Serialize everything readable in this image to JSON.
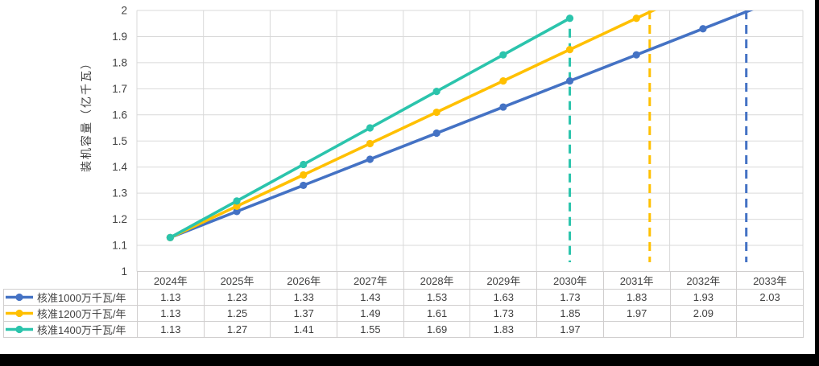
{
  "chart_data": {
    "type": "line",
    "title": "",
    "ylabel": "装机容量（亿千瓦）",
    "xlabel": "",
    "ylim": [
      1,
      2
    ],
    "ytick_step": 0.1,
    "ytick_labels": [
      "1",
      "1.1",
      "1.2",
      "1.3",
      "1.4",
      "1.5",
      "1.6",
      "1.7",
      "1.8",
      "1.9",
      "2"
    ],
    "grid": true,
    "legend_position": "table-left",
    "categories": [
      "2024年",
      "2025年",
      "2026年",
      "2027年",
      "2028年",
      "2029年",
      "2030年",
      "2031年",
      "2032年",
      "2033年"
    ],
    "series": [
      {
        "name": "核准1000万千瓦/年",
        "color": "#4472C4",
        "values": [
          1.13,
          1.23,
          1.33,
          1.43,
          1.53,
          1.63,
          1.73,
          1.83,
          1.93,
          2.03
        ]
      },
      {
        "name": "核准1200万千瓦/年",
        "color": "#FFC000",
        "values": [
          1.13,
          1.25,
          1.37,
          1.49,
          1.61,
          1.73,
          1.85,
          1.97,
          2.09
        ]
      },
      {
        "name": "核准1400万千瓦/年",
        "color": "#2BC4AC",
        "values": [
          1.13,
          1.27,
          1.41,
          1.55,
          1.69,
          1.83,
          1.97
        ]
      }
    ],
    "goal_lines": [
      {
        "series": "核准1400万千瓦/年",
        "color": "#2BC4AC",
        "x_year_index": 6.0,
        "y_start_value": 1.93
      },
      {
        "series": "核准1200万千瓦/年",
        "color": "#FFC000",
        "x_year_index": 7.2,
        "y_start_value": 2.0
      },
      {
        "series": "核准1000万千瓦/年",
        "color": "#4472C4",
        "x_year_index": 8.65,
        "y_start_value": 2.0
      }
    ]
  },
  "colors": {
    "background": "#FFFFFF",
    "grid": "#D9D9D9",
    "axis_text": "#404040",
    "table_border": "#D0CECE",
    "edge_bars": "#000000"
  }
}
